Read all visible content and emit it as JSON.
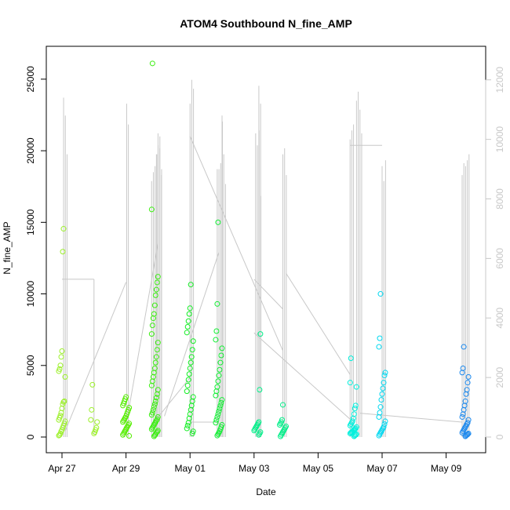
{
  "chart_data": {
    "type": "scatter",
    "title": "ATOM4 Southbound N_fine_AMP",
    "xlabel": "Date",
    "ylabel": "N_fine_AMP",
    "x_ticks": [
      "Apr 27",
      "Apr 29",
      "May 01",
      "May 03",
      "May 05",
      "May 07",
      "May 09"
    ],
    "x_tick_values": [
      27,
      29,
      31,
      33,
      35,
      37,
      39
    ],
    "xlim": [
      26.5,
      39.8
    ],
    "ylim": [
      0,
      26200
    ],
    "y_ticks": [
      0,
      5000,
      10000,
      15000,
      20000,
      25000
    ],
    "y2_ticks": [
      0,
      2000,
      4000,
      6000,
      8000,
      10000,
      12000
    ],
    "y2lim": [
      0,
      12600
    ],
    "grid": false,
    "legend": "none",
    "colors": {
      "points_scale": [
        "#9cf02a",
        "#55ee00",
        "#11ee22",
        "#00ee88",
        "#00f0dd",
        "#00d8f0",
        "#1a88ee"
      ],
      "secondary_line": "#c8c8c8"
    },
    "point_clusters": [
      {
        "x": 27.0,
        "color": "#9cf02a",
        "values": [
          100,
          150,
          250,
          400,
          500,
          650,
          800,
          950,
          1100,
          1200,
          1350,
          1500,
          1700,
          2000,
          2300,
          2450,
          2500,
          4200,
          4600,
          4750,
          5000,
          5600,
          6000,
          12950,
          14550
        ]
      },
      {
        "x": 28.0,
        "color": "#9cf02a",
        "values": [
          250,
          350,
          500,
          650,
          1050,
          1200,
          1900,
          3650
        ]
      },
      {
        "x": 29.0,
        "color": "#55ee00",
        "values": [
          80,
          150,
          250,
          350,
          450,
          550,
          650,
          750,
          850,
          950,
          1050,
          1150,
          1250,
          1350,
          1450,
          1600,
          1750,
          1900,
          2050,
          2200,
          2350,
          2500,
          2650,
          2800
        ]
      },
      {
        "x": 29.9,
        "color": "#3bee11",
        "values": [
          50,
          120,
          200,
          300,
          380,
          450,
          550,
          650,
          750,
          850,
          950,
          1050,
          1150,
          1250,
          1400,
          1550,
          1700,
          1900,
          2100,
          2300,
          2500,
          2750,
          3000,
          3300,
          3600,
          3900,
          4200,
          4500,
          4800,
          5200,
          5600,
          6100,
          6600,
          7200,
          7800,
          8300,
          8600,
          9200,
          9900,
          10300,
          10800,
          11200,
          15900,
          26100
        ]
      },
      {
        "x": 31.0,
        "color": "#11ee22",
        "values": [
          250,
          400,
          600,
          800,
          1000,
          1300,
          1600,
          1900,
          2200,
          2500,
          2800,
          3200,
          3600,
          4000,
          4400,
          4800,
          5200,
          5600,
          6100,
          6700,
          7300,
          7700,
          8100,
          8600,
          9000,
          10650
        ]
      },
      {
        "x": 31.9,
        "color": "#11ee33",
        "values": [
          100,
          200,
          300,
          400,
          550,
          700,
          850,
          1000,
          1200,
          1400,
          1600,
          1800,
          2000,
          2200,
          2400,
          2600,
          2900,
          3200,
          3500,
          3900,
          4300,
          4700,
          5200,
          5700,
          6200,
          6800,
          7400,
          9300,
          15000
        ]
      },
      {
        "x": 33.1,
        "color": "#00ee88",
        "values": [
          150,
          250,
          350,
          450,
          550,
          650,
          750,
          850,
          950,
          1050,
          3300,
          7200
        ]
      },
      {
        "x": 33.9,
        "color": "#00ee88",
        "values": [
          50,
          150,
          250,
          350,
          450,
          550,
          650,
          750,
          850,
          950,
          1050,
          1200,
          2250
        ]
      },
      {
        "x": 36.1,
        "color": "#00f0dd",
        "values": [
          50,
          100,
          150,
          200,
          250,
          300,
          350,
          400,
          450,
          500,
          550,
          600,
          700,
          800,
          900,
          1000,
          1100,
          1300,
          1600,
          2000,
          2200,
          3500,
          3800,
          5500
        ]
      },
      {
        "x": 37.0,
        "color": "#00d8f0",
        "values": [
          100,
          200,
          300,
          400,
          500,
          600,
          700,
          900,
          1100,
          1400,
          1700,
          2100,
          2600,
          3000,
          3400,
          3800,
          4300,
          4500,
          6300,
          6900,
          10000
        ]
      },
      {
        "x": 39.6,
        "color": "#1a88ee",
        "values": [
          50,
          100,
          150,
          200,
          250,
          300,
          400,
          500,
          600,
          700,
          800,
          900,
          1000,
          1200,
          1400,
          1600,
          1900,
          2200,
          2500,
          3000,
          3300,
          3800,
          4200,
          4500,
          4800,
          6300
        ]
      }
    ],
    "secondary_series": {
      "name": "",
      "spikes": [
        {
          "x": 27.05,
          "values": [
            11400,
            10800,
            9500
          ]
        },
        {
          "x": 29.02,
          "values": [
            11200,
            10500
          ]
        },
        {
          "x": 29.8,
          "values": [
            8600,
            8900,
            9100,
            9500
          ]
        },
        {
          "x": 29.95,
          "values": [
            9500,
            9800,
            10100,
            9000
          ]
        },
        {
          "x": 30.0,
          "values": [
            10200,
            9700,
            8800
          ]
        },
        {
          "x": 31.0,
          "values": [
            11200,
            12000,
            11700
          ]
        },
        {
          "x": 31.85,
          "values": [
            9000,
            9000,
            9200,
            10600
          ]
        },
        {
          "x": 32.0,
          "values": [
            10800,
            9500,
            8500
          ]
        },
        {
          "x": 33.05,
          "values": [
            10200,
            9800,
            10300,
            8100
          ]
        },
        {
          "x": 33.15,
          "values": [
            11800,
            11200
          ]
        },
        {
          "x": 33.9,
          "values": [
            9500,
            9700,
            8800
          ]
        },
        {
          "x": 36.0,
          "values": [
            10000,
            10300,
            10500
          ]
        },
        {
          "x": 36.2,
          "values": [
            11300,
            11600,
            11000,
            10200
          ]
        },
        {
          "x": 37.0,
          "values": [
            9100,
            8600,
            9300
          ]
        },
        {
          "x": 39.5,
          "values": [
            8800,
            9200,
            9100,
            9300,
            9500
          ]
        }
      ],
      "connectors": [
        [
          27.0,
          5300,
          28.0,
          5300
        ],
        [
          28.0,
          5300,
          28.0,
          100
        ],
        [
          27.1,
          200,
          29.0,
          5200
        ],
        [
          29.0,
          400,
          30.0,
          6500
        ],
        [
          29.8,
          400,
          31.0,
          2000
        ],
        [
          30.2,
          700,
          31.9,
          6200
        ],
        [
          31.0,
          10100,
          33.9,
          2900
        ],
        [
          31.0,
          500,
          31.9,
          500
        ],
        [
          33.0,
          5300,
          33.9,
          4300
        ],
        [
          33.0,
          3500,
          36.0,
          600
        ],
        [
          34.0,
          5500,
          36.0,
          2100
        ],
        [
          36.0,
          9800,
          37.0,
          9800
        ],
        [
          36.3,
          800,
          39.5,
          500
        ]
      ]
    }
  }
}
